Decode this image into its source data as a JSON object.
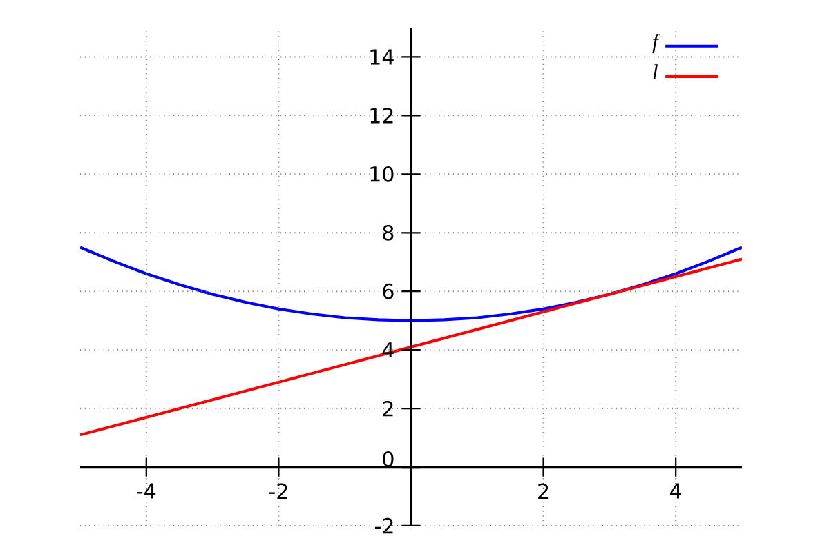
{
  "chart_data": {
    "type": "line",
    "series": [
      {
        "name": "f",
        "color": "#0000ff",
        "x": [
          -5,
          -4.5,
          -4,
          -3.5,
          -3,
          -2.5,
          -2,
          -1.5,
          -1,
          -0.5,
          0,
          0.5,
          1,
          1.5,
          2,
          2.5,
          3,
          3.5,
          4,
          4.5,
          5
        ],
        "values": [
          7.5,
          7.03,
          6.6,
          6.23,
          5.9,
          5.63,
          5.4,
          5.23,
          5.1,
          5.03,
          5.0,
          5.03,
          5.1,
          5.23,
          5.4,
          5.63,
          5.9,
          6.23,
          6.6,
          7.03,
          7.5
        ]
      },
      {
        "name": "l",
        "color": "#ff0000",
        "x": [
          -5,
          5
        ],
        "values": [
          1.1,
          7.1
        ]
      }
    ],
    "xlim": [
      -5,
      5
    ],
    "ylim": [
      -2,
      15
    ],
    "xticks": [
      -4,
      -2,
      2,
      4
    ],
    "yticks": [
      -2,
      0,
      2,
      4,
      6,
      8,
      10,
      12,
      14
    ],
    "grid": true,
    "legend": "top right"
  }
}
